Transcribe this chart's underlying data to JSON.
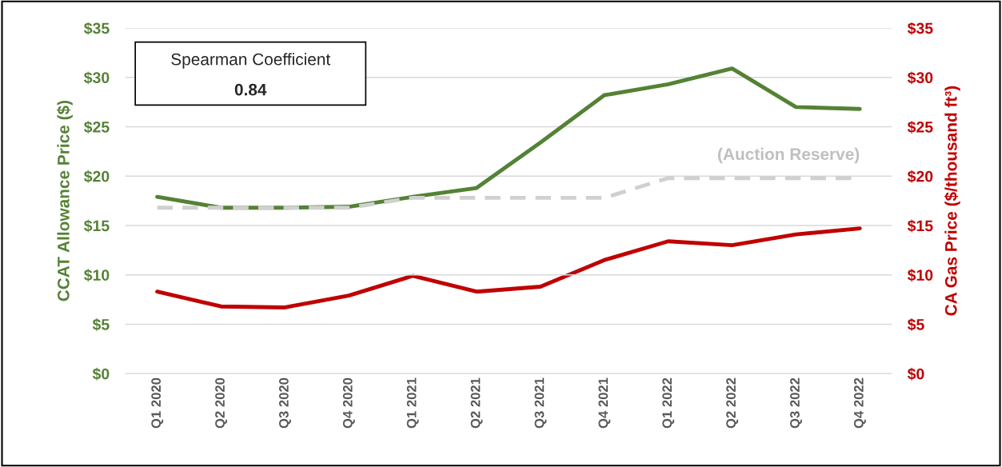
{
  "chart_data": {
    "type": "line",
    "categories": [
      "Q1 2020",
      "Q2 2020",
      "Q3 2020",
      "Q4 2020",
      "Q1 2021",
      "Q2 2021",
      "Q3 2021",
      "Q4 2021",
      "Q1 2022",
      "Q2 2022",
      "Q3 2022",
      "Q4 2022"
    ],
    "series": [
      {
        "color": "#548235",
        "values": [
          17.9,
          16.8,
          16.8,
          16.9,
          17.9,
          18.8,
          23.4,
          28.2,
          29.3,
          30.9,
          27.0,
          26.8
        ]
      },
      {
        "name": "(Auction Reserve)",
        "color": "#d0d0d0",
        "line_style": "dashed",
        "values": [
          16.8,
          16.8,
          16.8,
          16.8,
          17.8,
          17.8,
          17.8,
          17.8,
          19.8,
          19.8,
          19.8,
          19.8
        ]
      },
      {
        "color": "#c00000",
        "axis": "y2",
        "values": [
          8.3,
          6.8,
          6.7,
          7.9,
          9.9,
          8.3,
          8.8,
          11.5,
          13.4,
          13.0,
          14.1,
          14.7
        ]
      }
    ],
    "ylabel": "CCAT Allowance Price ($)",
    "y2label": "CA Gas Price ($/thousand ft³)",
    "ylim": [
      0,
      35
    ],
    "yticks": [
      {
        "value": 0,
        "label": "$0"
      },
      {
        "value": 5,
        "label": "$5"
      },
      {
        "value": 10,
        "label": "$10"
      },
      {
        "value": 15,
        "label": "$15"
      },
      {
        "value": 20,
        "label": "$20"
      },
      {
        "value": 25,
        "label": "$25"
      },
      {
        "value": 30,
        "label": "$30"
      },
      {
        "value": 35,
        "label": "$35"
      }
    ],
    "y2lim": [
      0,
      35
    ],
    "y2ticks": [
      {
        "value": 0,
        "label": "$0"
      },
      {
        "value": 5,
        "label": "$5"
      },
      {
        "value": 10,
        "label": "$10"
      },
      {
        "value": 15,
        "label": "$15"
      },
      {
        "value": 20,
        "label": "$20"
      },
      {
        "value": 25,
        "label": "$25"
      },
      {
        "value": 30,
        "label": "$30"
      },
      {
        "value": 35,
        "label": "$35"
      }
    ],
    "annotations": [
      "Spearman Coefficient",
      "0.84"
    ],
    "grid": "y",
    "legend": false
  }
}
